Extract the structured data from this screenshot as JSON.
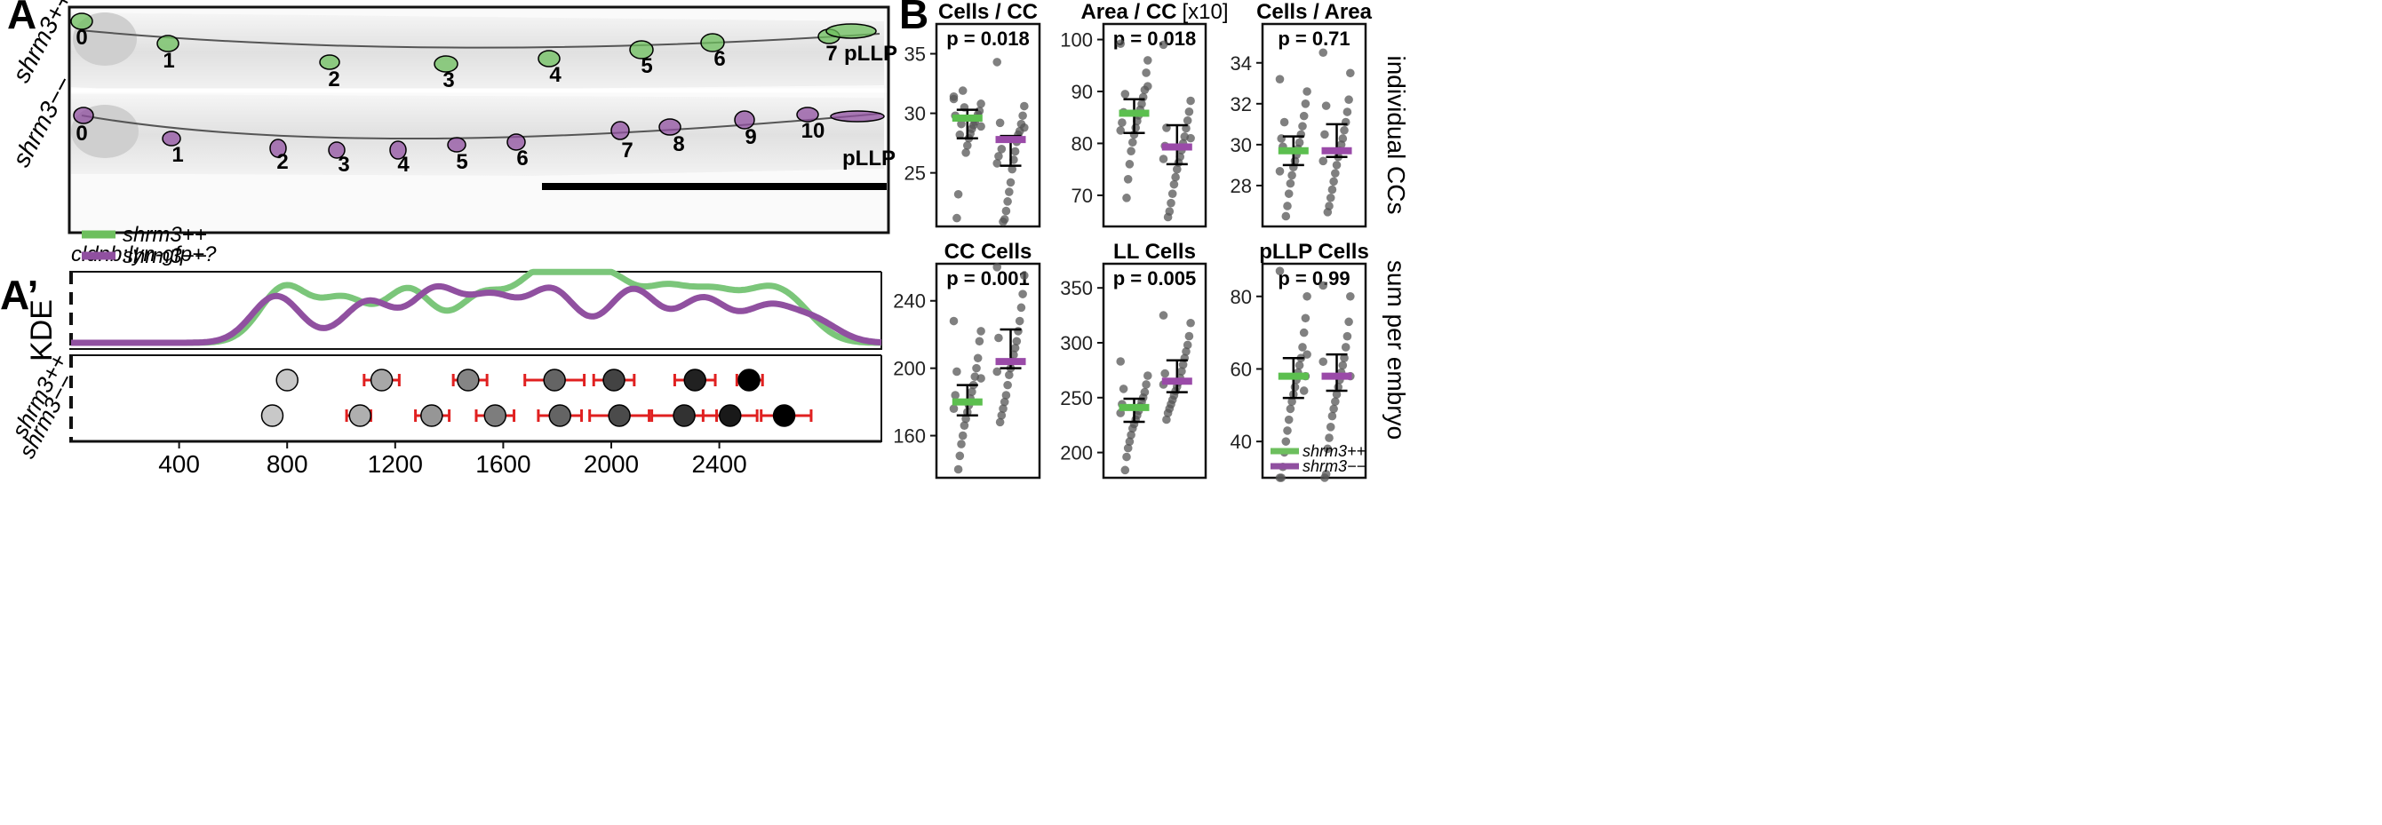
{
  "panel_a": {
    "label": "A",
    "genotype_top": "shrm3++",
    "genotype_bottom": "shrm3−−",
    "caption": "cldnb:lyn-gfp+?",
    "top_cc_labels": [
      "0",
      "1",
      "2",
      "3",
      "4",
      "5",
      "6",
      "7",
      "pLLP"
    ],
    "bottom_cc_labels": [
      "0",
      "1",
      "2",
      "3",
      "4",
      "5",
      "6",
      "7",
      "8",
      "9",
      "10",
      "pLLP"
    ],
    "colors": {
      "wt": "#6dbf5e",
      "mut": "#9050a0"
    }
  },
  "panel_a2": {
    "label": "A’",
    "ylabel": "KDE",
    "legend": [
      "shrm3++",
      "shrm3−−"
    ],
    "row_labels": [
      "shrm3++",
      "shrm3−−"
    ],
    "x_ticks": [
      "400",
      "800",
      "1200",
      "1600",
      "2000",
      "2400"
    ],
    "chart_data": {
      "type": "line",
      "x_range": [
        0,
        3000
      ],
      "series": [
        {
          "name": "shrm3++",
          "color": "#7bc67a",
          "peaks": [
            [
              790,
              0.78
            ],
            [
              1010,
              0.6
            ],
            [
              1250,
              0.75
            ],
            [
              1520,
              0.65
            ],
            [
              1720,
              0.75
            ],
            [
              1850,
              0.63
            ],
            [
              2000,
              0.78
            ],
            [
              2200,
              0.68
            ],
            [
              2380,
              0.62
            ],
            [
              2560,
              0.55
            ],
            [
              2680,
              0.4
            ]
          ]
        },
        {
          "name": "shrm3−−",
          "color": "#9050a0",
          "peaks": [
            [
              760,
              0.66
            ],
            [
              1100,
              0.58
            ],
            [
              1350,
              0.74
            ],
            [
              1560,
              0.62
            ],
            [
              1780,
              0.74
            ],
            [
              2080,
              0.75
            ],
            [
              2340,
              0.62
            ],
            [
              2580,
              0.48
            ],
            [
              2750,
              0.3
            ]
          ]
        }
      ]
    },
    "dots": {
      "wt": [
        {
          "x": 800,
          "err": [
            780,
            825
          ]
        },
        {
          "x": 1150,
          "err": [
            1085,
            1215
          ]
        },
        {
          "x": 1470,
          "err": [
            1415,
            1540
          ]
        },
        {
          "x": 1790,
          "err": [
            1680,
            1900
          ]
        },
        {
          "x": 2010,
          "err": [
            1935,
            2085
          ]
        },
        {
          "x": 2310,
          "err": [
            2235,
            2385
          ]
        },
        {
          "x": 2510,
          "err": [
            2465,
            2560
          ]
        }
      ],
      "mut": [
        {
          "x": 745,
          "err": [
            735,
            755
          ]
        },
        {
          "x": 1070,
          "err": [
            1020,
            1110
          ]
        },
        {
          "x": 1335,
          "err": [
            1275,
            1400
          ]
        },
        {
          "x": 1570,
          "err": [
            1500,
            1640
          ]
        },
        {
          "x": 1810,
          "err": [
            1730,
            1890
          ]
        },
        {
          "x": 2030,
          "err": [
            1920,
            2140
          ]
        },
        {
          "x": 2270,
          "err": [
            2150,
            2390
          ]
        },
        {
          "x": 2440,
          "err": [
            2340,
            2540
          ]
        },
        {
          "x": 2640,
          "err": [
            2555,
            2740
          ]
        }
      ]
    }
  },
  "panel_b": {
    "label": "B",
    "side_label_top": "individual CCs",
    "side_label_bottom": "sum per embryo",
    "legend": [
      "shrm3++",
      "shrm3−−"
    ],
    "chart_data": [
      {
        "type": "scatter",
        "title": "Cells / CC",
        "p": "p = 0.018",
        "yticks": [
          25,
          30,
          35
        ],
        "ylim": [
          20.5,
          37.5
        ],
        "wt": {
          "mean": 29.6,
          "err": [
            27.9,
            30.3
          ],
          "pts": [
            31.4,
            30.8,
            30.2,
            29.9,
            29.6,
            29.3,
            29.0,
            28.7,
            28.3,
            27.9,
            27.3,
            26.7,
            30.5,
            31.9,
            29.1,
            28.2,
            23.2,
            21.2,
            29.8,
            31.2,
            28.9
          ]
        },
        "mut": {
          "mean": 27.8,
          "err": [
            25.6,
            28.1
          ],
          "pts": [
            34.3,
            30.6,
            29.8,
            29.1,
            28.5,
            28.2,
            27.6,
            26.8,
            26.1,
            25.3,
            24.2,
            23.4,
            22.6,
            21.8,
            21.1,
            20.9,
            27.0,
            29.2,
            26.4,
            25.8,
            28.8
          ]
        }
      },
      {
        "type": "scatter",
        "title": "Area / CC",
        "title_suffix": "[x10]",
        "p": "p = 0.018",
        "yticks": [
          70,
          80,
          90,
          100
        ],
        "ylim": [
          64,
          103
        ],
        "wt": {
          "mean": 85.8,
          "err": [
            82.0,
            88.5
          ],
          "pts": [
            99.2,
            96.0,
            93.6,
            90.3,
            88.9,
            87.6,
            86.5,
            85.4,
            84.3,
            83.0,
            81.7,
            80.2,
            78.5,
            76.0,
            73.1,
            69.5,
            89.5,
            86.0,
            84.0,
            82.5,
            91.0
          ]
        },
        "mut": {
          "mean": 79.3,
          "err": [
            76.0,
            83.5
          ],
          "pts": [
            99.0,
            88.2,
            86.1,
            84.4,
            82.9,
            81.3,
            80.0,
            78.7,
            77.4,
            76.3,
            75.0,
            73.5,
            72.1,
            70.3,
            68.5,
            66.9,
            65.8,
            83.0,
            79.5,
            77.0,
            81.0
          ]
        }
      },
      {
        "type": "scatter",
        "title": "Cells / Area",
        "p": "p = 0.71",
        "yticks": [
          28,
          30,
          32,
          34
        ],
        "ylim": [
          26.0,
          35.9
        ],
        "wt": {
          "mean": 29.7,
          "err": [
            29.0,
            30.4
          ],
          "pts": [
            33.2,
            32.6,
            32.0,
            31.4,
            30.9,
            30.5,
            30.1,
            29.8,
            29.5,
            29.2,
            28.9,
            28.5,
            28.1,
            27.6,
            27.0,
            26.5,
            31.1,
            29.9,
            30.3,
            28.7
          ]
        },
        "mut": {
          "mean": 29.7,
          "err": [
            29.4,
            31.0
          ],
          "pts": [
            34.5,
            33.5,
            32.2,
            31.6,
            31.1,
            30.7,
            30.3,
            30.0,
            29.7,
            29.4,
            29.0,
            28.6,
            28.2,
            27.8,
            27.4,
            27.0,
            26.7,
            31.9,
            30.5,
            29.2
          ]
        }
      },
      {
        "type": "scatter",
        "title": "CC Cells",
        "p": "p = 0.001",
        "yticks": [
          160,
          200,
          240
        ],
        "ylim": [
          135,
          262
        ],
        "wt": {
          "mean": 180,
          "err": [
            172,
            190
          ],
          "pts": [
            228,
            222,
            216,
            206,
            200,
            195,
            190,
            186,
            182,
            178,
            174,
            170,
            166,
            160,
            155,
            148,
            140,
            198,
            184,
            176,
            194
          ]
        },
        "mut": {
          "mean": 204,
          "err": [
            200,
            223
          ],
          "pts": [
            260,
            255,
            244,
            236,
            228,
            222,
            216,
            212,
            208,
            204,
            200,
            196,
            190,
            184,
            180,
            176,
            172,
            168,
            218,
            198
          ]
        }
      },
      {
        "type": "scatter",
        "title": "LL Cells",
        "p": "p = 0.005",
        "yticks": [
          200,
          250,
          300,
          350
        ],
        "ylim": [
          177,
          372
        ],
        "wt": {
          "mean": 241,
          "err": [
            228,
            249
          ],
          "pts": [
            283,
            270,
            262,
            255,
            250,
            246,
            242,
            238,
            234,
            230,
            226,
            222,
            216,
            210,
            204,
            196,
            184,
            258,
            244,
            236
          ]
        },
        "mut": {
          "mean": 265,
          "err": [
            255,
            284
          ],
          "pts": [
            325,
            318,
            306,
            298,
            292,
            286,
            280,
            274,
            268,
            264,
            260,
            256,
            252,
            248,
            244,
            240,
            236,
            230,
            272,
            262
          ]
        }
      },
      {
        "type": "scatter",
        "title": "pLLP Cells",
        "p": "p = 0.99",
        "yticks": [
          40,
          60,
          80
        ],
        "ylim": [
          30,
          89
        ],
        "wt": {
          "mean": 58,
          "err": [
            52,
            63
          ],
          "pts": [
            87,
            80,
            74,
            70,
            66,
            63,
            61,
            59,
            57,
            55,
            53,
            51,
            49,
            46,
            43,
            40,
            37,
            33,
            30,
            30,
            64,
            58,
            54
          ]
        },
        "mut": {
          "mean": 58,
          "err": [
            54,
            64
          ],
          "pts": [
            83,
            80,
            73,
            69,
            66,
            63,
            61,
            59,
            57,
            55,
            53,
            51,
            49,
            47,
            44,
            41,
            38,
            31,
            30,
            62,
            58
          ]
        }
      }
    ]
  }
}
